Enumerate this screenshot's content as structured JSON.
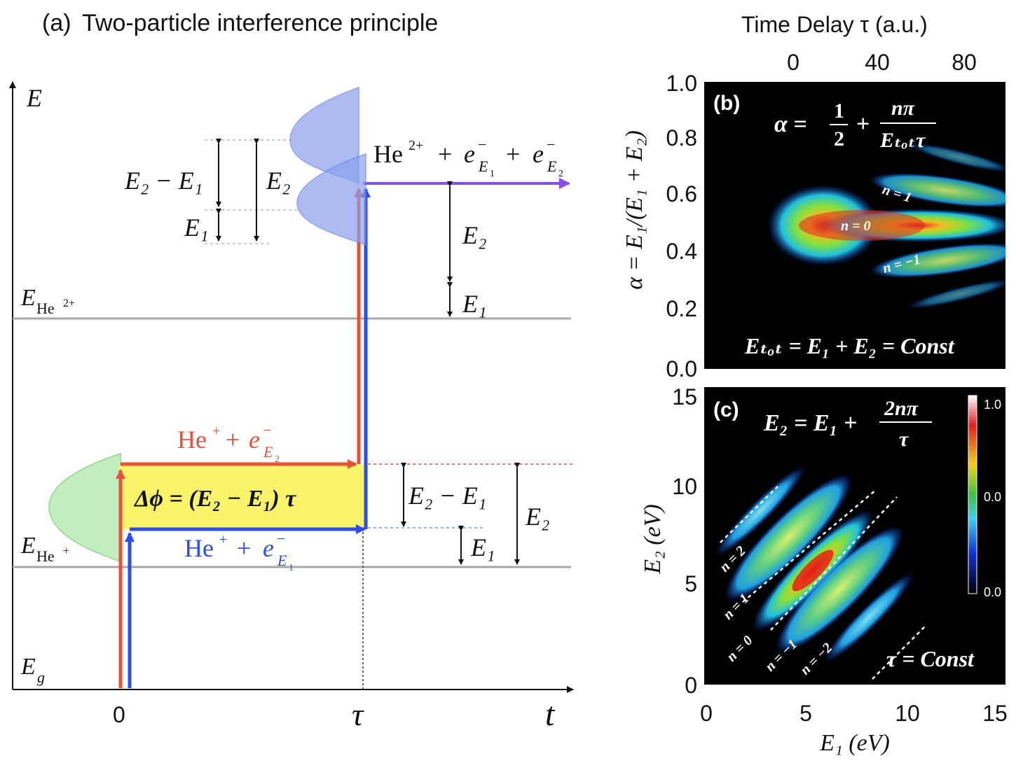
{
  "panel_a": {
    "label": "(a)",
    "title": "Two-particle interference principle",
    "axis_energy": "E",
    "axis_time": "t",
    "tick_zero": "0",
    "tick_tau": "τ",
    "level_g": "g",
    "level_he_plus_base": "He",
    "level_he_plus_sup": "+",
    "level_he2_base": "He",
    "level_he2_sup": "2+",
    "final_he": "He",
    "final_he_sup": "2+",
    "plus": "+",
    "e": "e",
    "minus": "−",
    "sub_e1": "E",
    "sub_e1_idx": "1",
    "sub_e2_idx": "2",
    "channel_red_he": "He",
    "channel_sup": "+",
    "channel_blue_he": "He",
    "phase_formula": "Δϕ = (E₂ − E₁) τ",
    "lbl_e2_minus_e1": "E₂ − E₁",
    "lbl_e2": "E₂",
    "lbl_e1": "E₁"
  },
  "panel_b": {
    "label": "(b)",
    "top_axis_title": "Time Delay τ (a.u.)",
    "top_ticks": [
      "0",
      "40",
      "80"
    ],
    "yticks": [
      "1.0",
      "0.8",
      "0.6",
      "0.4",
      "0.2",
      "0.0"
    ],
    "ylabel": "α = E₁/(E₁ + E₂)",
    "formula_lhs": "α =",
    "formula_half_num": "1",
    "formula_half_den": "2",
    "formula_plus": "+",
    "formula_num": "nπ",
    "formula_den": "Eₜₒₜτ",
    "footer": "Eₜₒₜ = E₁ + E₂ = Const",
    "ridge_labels": [
      "n = 1",
      "n = 0",
      "n = −1"
    ]
  },
  "panel_c": {
    "label": "(c)",
    "yticks": [
      "15",
      "10",
      "5",
      "0"
    ],
    "xticks": [
      "0",
      "5",
      "10",
      "15"
    ],
    "xlabel": "E₁ (eV)",
    "ylabel": "E₂ (eV)",
    "formula_lhs": "E₂ = E₁ +",
    "formula_num": "2nπ",
    "formula_den": "τ",
    "footer": "τ = Const",
    "ridge_labels": [
      "n = 2",
      "n = 1",
      "n = 0",
      "n = −1",
      "n = −2"
    ],
    "colorbar_ticks": [
      "1.0",
      "0.0",
      "0.0"
    ]
  },
  "colors": {
    "red": "#e8503a",
    "blue": "#2a4cf2",
    "purple": "#8a4cf0",
    "yellow": "#faf46a",
    "gray": "#a8a8a8"
  }
}
